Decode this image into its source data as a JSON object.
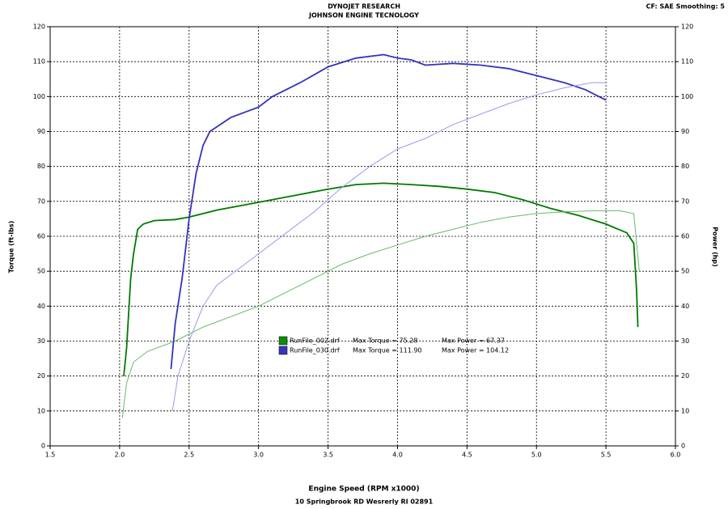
{
  "chart_data": {
    "type": "line",
    "title": "DYNOJET RESEARCH",
    "subtitle": "JOHNSON ENGINE TECNOLOGY",
    "settings_label": "CF: SAE  Smoothing: 5",
    "x_label": "Engine Speed (RPM x1000)",
    "footer": "10 Springbrook RD Wesrerly RI 02891",
    "y_label": "Torque (ft-lbs)",
    "y2_label": "Power (hp)",
    "grid": true,
    "xlim": [
      1.5,
      6.0
    ],
    "xticks": [
      1.5,
      {
        "value": 2,
        "label": "2.0"
      },
      2.5,
      {
        "value": 3,
        "label": "3.0"
      },
      3.5,
      {
        "value": 4,
        "label": "4.0"
      },
      4.5,
      {
        "value": 5,
        "label": "5.0"
      },
      5.5,
      {
        "value": 6,
        "label": "6.0"
      }
    ],
    "ylim": [
      0,
      120
    ],
    "yticks": [
      0,
      10,
      20,
      30,
      40,
      50,
      60,
      70,
      80,
      90,
      100,
      110,
      120
    ],
    "y2lim": [
      0,
      120
    ],
    "y2ticks": [
      0,
      10,
      20,
      30,
      40,
      50,
      60,
      70,
      80,
      90,
      100,
      110,
      120
    ],
    "legend": [
      {
        "file": "RunFile_002.drf",
        "max_torque": "Max Torque = 75.28",
        "max_power": "Max Power = 67.37",
        "color": "#108a10"
      },
      {
        "file": "RunFile_030.drf",
        "max_torque": "Max Torque = 111.90",
        "max_power": "Max Power = 104.12",
        "color": "#3535c0"
      }
    ],
    "series": [
      {
        "color": "#007a00",
        "axis": "y",
        "x": [
          2.03,
          2.05,
          2.08,
          2.1,
          2.13,
          2.17,
          2.25,
          2.4,
          2.5,
          2.7,
          2.9,
          3.1,
          3.3,
          3.5,
          3.7,
          3.9,
          4.1,
          4.3,
          4.5,
          4.7,
          4.9,
          5.1,
          5.3,
          5.5,
          5.65,
          5.7,
          5.72,
          5.73
        ],
        "values": [
          20,
          28,
          48,
          55,
          62,
          63.5,
          64.5,
          64.8,
          65.5,
          67.5,
          69,
          70.5,
          72,
          73.5,
          74.8,
          75.2,
          74.8,
          74.3,
          73.5,
          72.5,
          70.5,
          68,
          66,
          63.5,
          61,
          58,
          45,
          34
        ]
      },
      {
        "color": "#66bb66",
        "axis": "y2",
        "x": [
          2.02,
          2.05,
          2.1,
          2.2,
          2.4,
          2.6,
          2.8,
          3.0,
          3.2,
          3.4,
          3.6,
          3.8,
          4.0,
          4.2,
          4.4,
          4.6,
          4.8,
          5.0,
          5.2,
          5.4,
          5.6,
          5.7,
          5.74
        ],
        "values": [
          8,
          18,
          24,
          27,
          30,
          34,
          37,
          40,
          44,
          48,
          52,
          55,
          57.5,
          60,
          62,
          64,
          65.5,
          66.5,
          67,
          67.3,
          67.3,
          66.5,
          50
        ]
      },
      {
        "color": "#3333bb",
        "axis": "y",
        "x": [
          2.37,
          2.4,
          2.45,
          2.5,
          2.55,
          2.6,
          2.65,
          2.8,
          3.0,
          3.1,
          3.3,
          3.5,
          3.7,
          3.9,
          4.0,
          4.1,
          4.2,
          4.4,
          4.6,
          4.8,
          5.0,
          5.2,
          5.35,
          5.5
        ],
        "values": [
          22,
          35,
          48,
          65,
          78,
          86,
          90,
          94,
          97,
          100,
          104,
          108.5,
          111,
          112,
          111,
          110.5,
          109,
          109.5,
          109,
          108,
          106,
          104,
          102,
          99
        ]
      },
      {
        "color": "#9999ee",
        "axis": "y2",
        "x": [
          2.38,
          2.42,
          2.5,
          2.6,
          2.7,
          2.8,
          3.0,
          3.2,
          3.4,
          3.6,
          3.8,
          4.0,
          4.2,
          4.4,
          4.6,
          4.8,
          5.0,
          5.2,
          5.4,
          5.5
        ],
        "values": [
          10,
          20,
          30,
          40,
          46,
          49,
          55,
          61,
          67,
          74,
          80,
          85,
          88,
          92,
          95,
          98,
          100.5,
          102.5,
          104,
          104
        ]
      }
    ]
  }
}
